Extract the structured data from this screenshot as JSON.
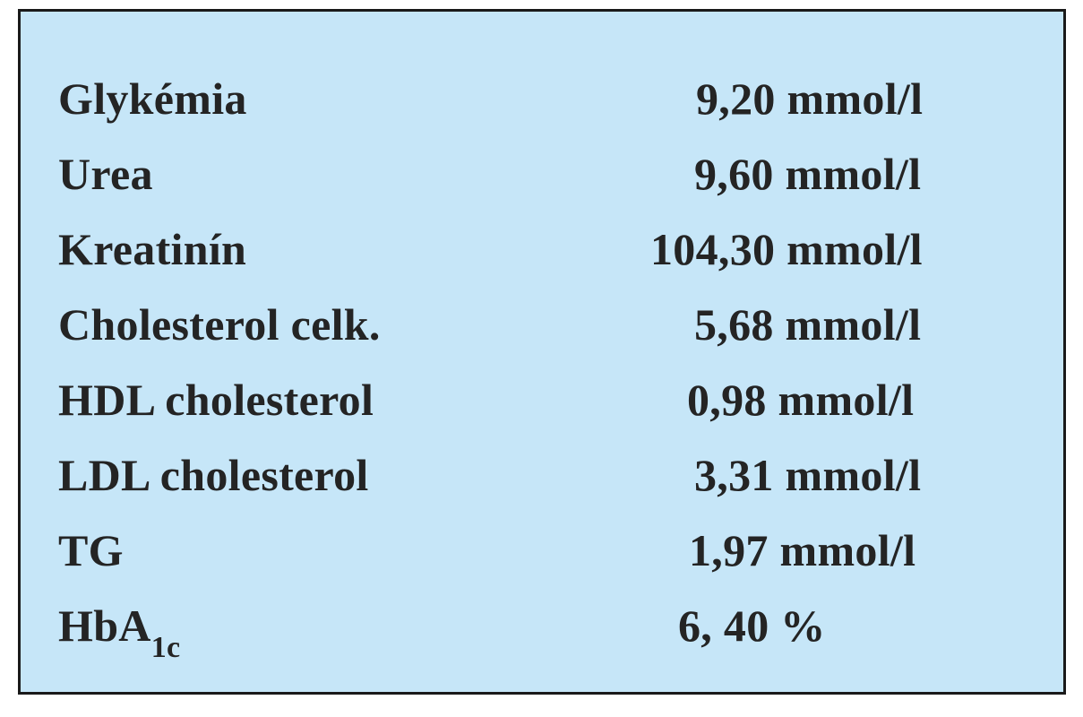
{
  "table": {
    "rows": [
      {
        "label": "Glykémia",
        "value": "9,20 mmol/l"
      },
      {
        "label": "Urea",
        "value": "9,60 mmol/l"
      },
      {
        "label": "Kreatinín",
        "value": "104,30 mmol/l"
      },
      {
        "label": "Cholesterol celk.",
        "value": "5,68 mmol/l"
      },
      {
        "label": "HDL cholesterol",
        "value": "0,98 mmol/l"
      },
      {
        "label": "LDL cholesterol",
        "value": "3,31 mmol/l"
      },
      {
        "label": "TG",
        "value": "1,97 mmol/l"
      },
      {
        "label": "HbA",
        "label_sub": "1c",
        "value": "6, 40 %"
      }
    ]
  }
}
